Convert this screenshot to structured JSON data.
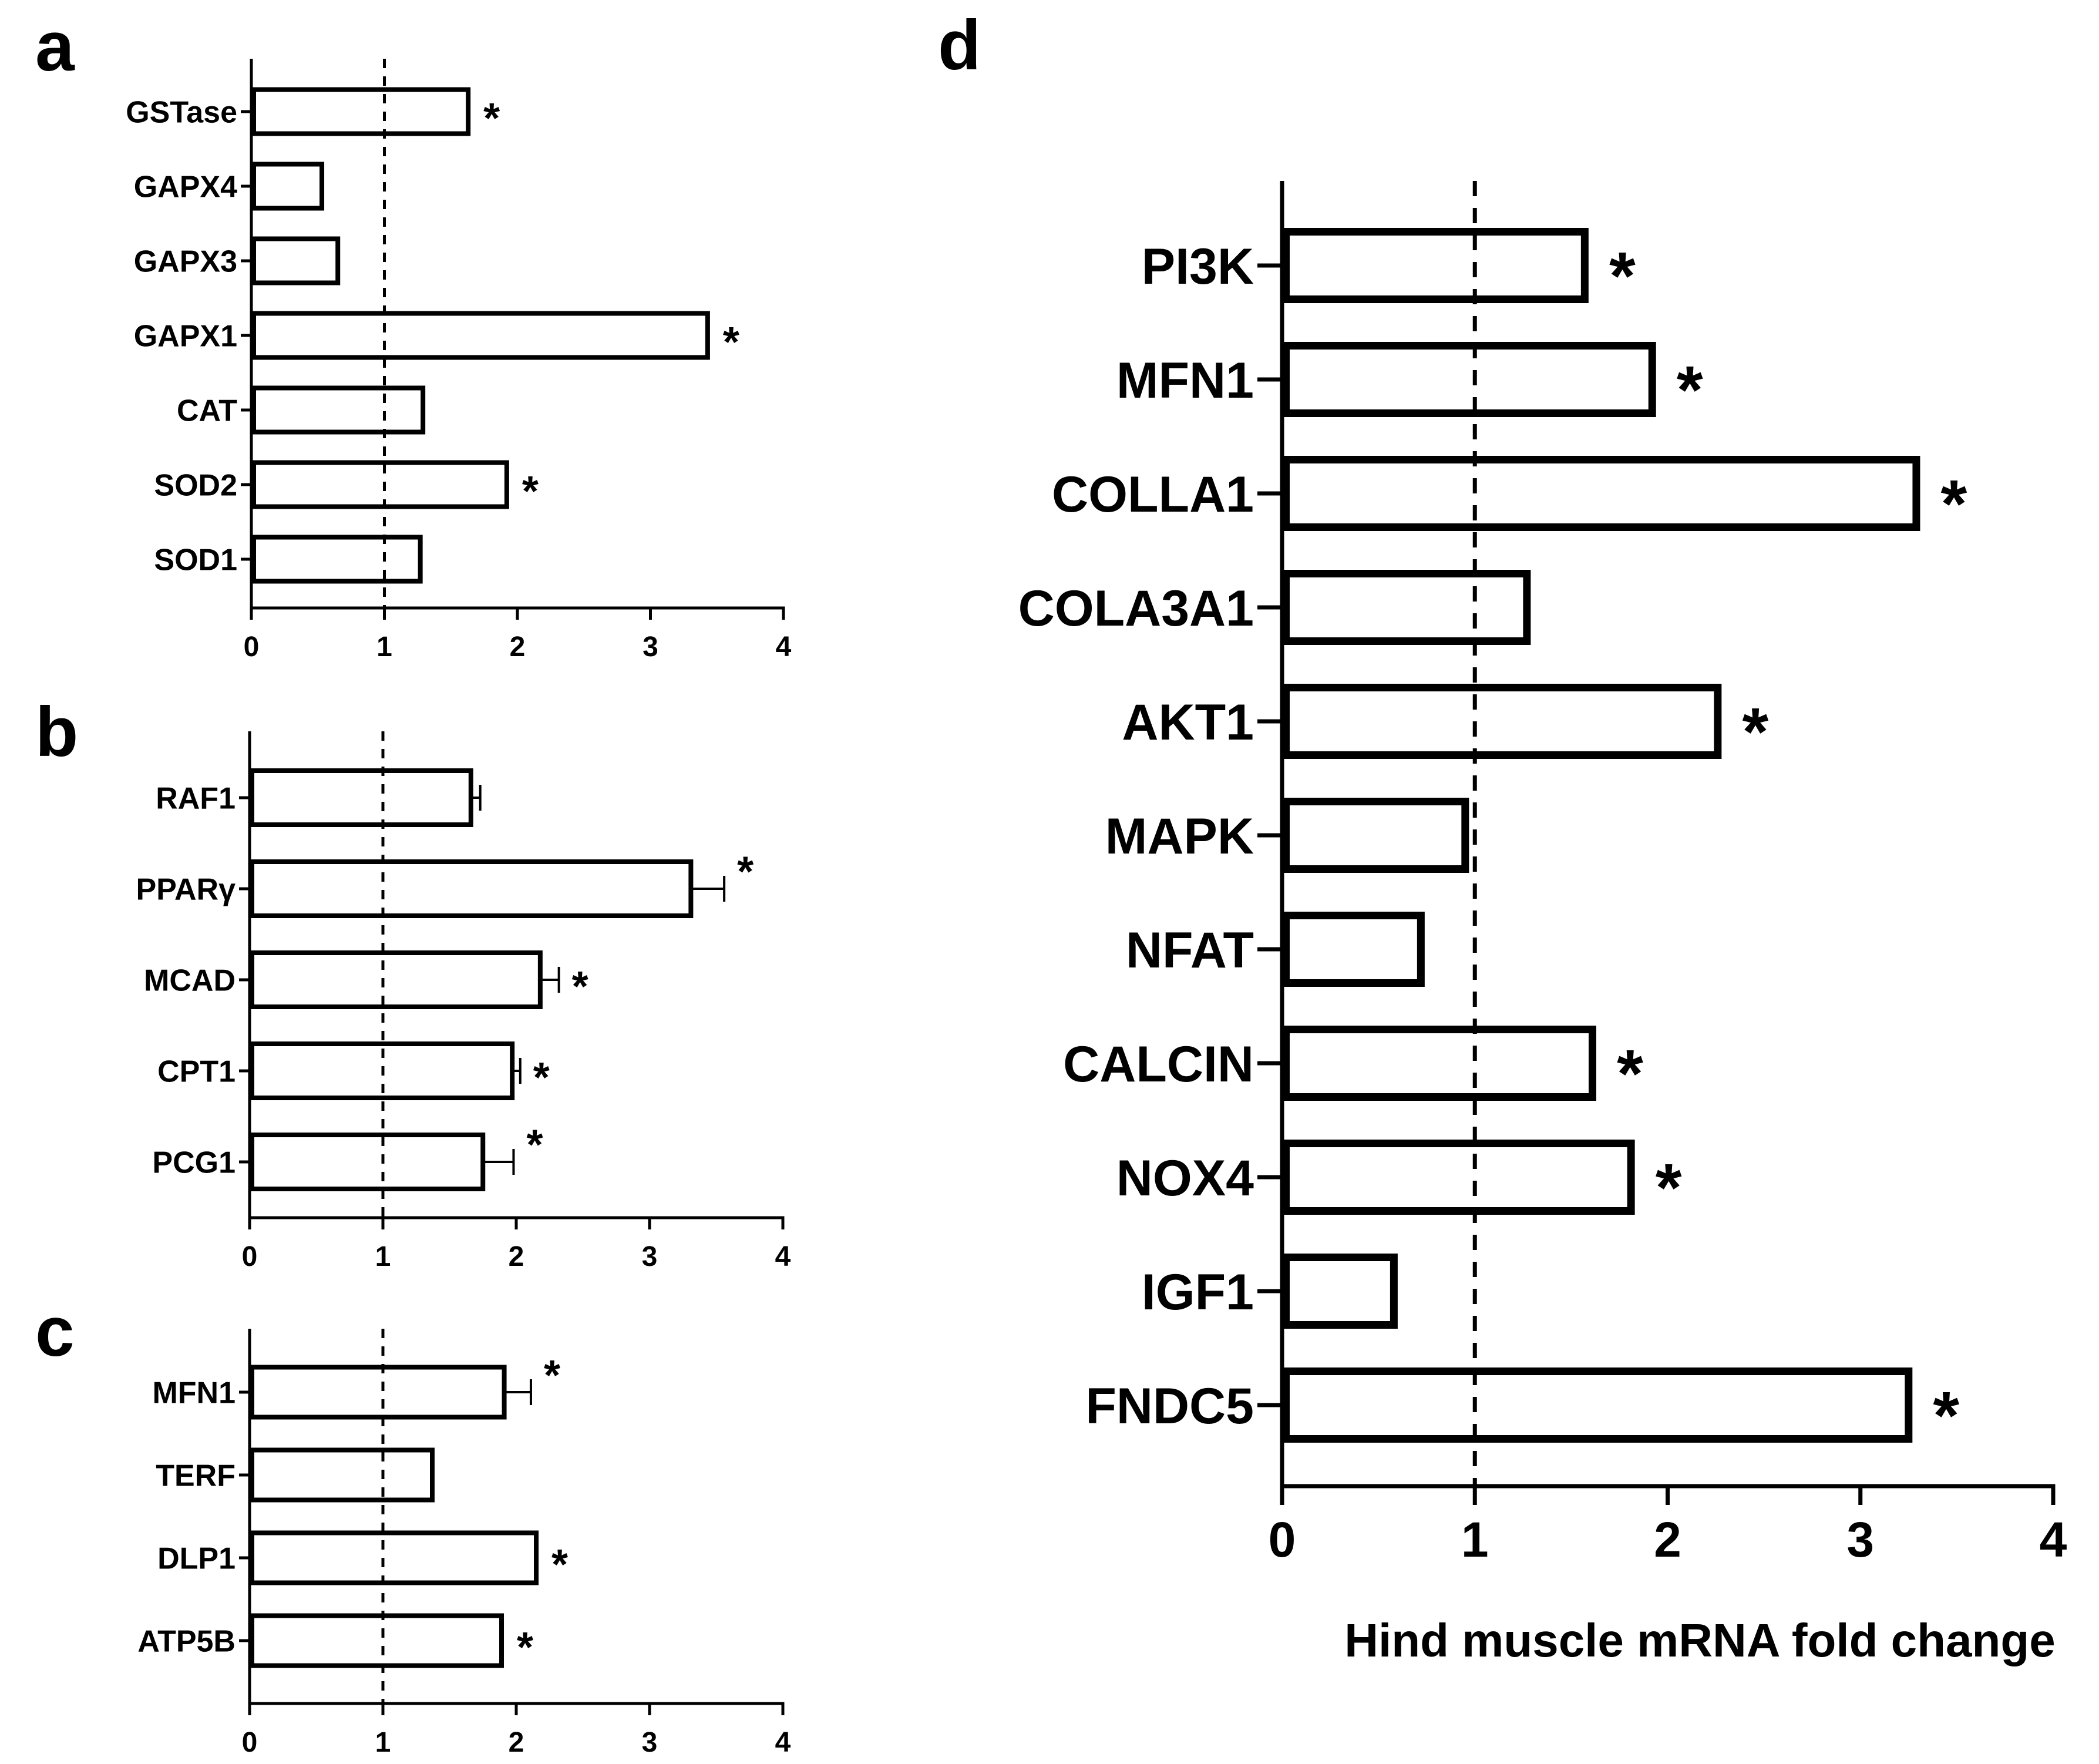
{
  "figure": {
    "x_max": 4
  },
  "chart_data": [
    {
      "panel": "a",
      "type": "bar",
      "orientation": "horizontal",
      "categories": [
        "GSTase",
        "GAPX4",
        "GAPX3",
        "GAPX1",
        "CAT",
        "SOD2",
        "SOD1"
      ],
      "values": [
        1.63,
        0.53,
        0.65,
        3.43,
        1.29,
        1.92,
        1.27
      ],
      "errors": [
        0,
        0,
        0,
        0,
        0,
        0,
        0
      ],
      "significant": [
        true,
        false,
        false,
        true,
        false,
        true,
        false
      ],
      "significance_marker": "*",
      "reference_line": 1,
      "xlim": [
        0,
        4
      ],
      "xticks": [
        0,
        1,
        2,
        3,
        4
      ],
      "xlabel": ""
    },
    {
      "panel": "b",
      "type": "bar",
      "orientation": "horizontal",
      "categories": [
        "RAF1",
        "PPARγ",
        "MCAD",
        "CPT1",
        "PCG1"
      ],
      "values": [
        1.66,
        3.31,
        2.18,
        1.97,
        1.75
      ],
      "errors": [
        0.07,
        0.25,
        0.14,
        0.06,
        0.23
      ],
      "significant": [
        false,
        true,
        true,
        true,
        true
      ],
      "significance_marker": "*",
      "reference_line": 1,
      "xlim": [
        0,
        4
      ],
      "xticks": [
        0,
        1,
        2,
        3,
        4
      ],
      "xlabel": ""
    },
    {
      "panel": "c",
      "type": "bar",
      "orientation": "horizontal",
      "categories": [
        "MFN1",
        "TERF",
        "DLP1",
        "ATP5B"
      ],
      "values": [
        1.91,
        1.37,
        2.15,
        1.89
      ],
      "errors": [
        0.2,
        0,
        0,
        0
      ],
      "significant": [
        true,
        false,
        true,
        true
      ],
      "significance_marker": "*",
      "reference_line": 1,
      "xlim": [
        0,
        4
      ],
      "xticks": [
        0,
        1,
        2,
        3,
        4
      ],
      "xlabel": ""
    },
    {
      "panel": "d",
      "type": "bar",
      "orientation": "horizontal",
      "categories": [
        "PI3K",
        "MFN1",
        "COLLA1",
        "COLA3A1",
        "AKT1",
        "MAPK",
        "NFAT",
        "CALCIN",
        "NOX4",
        "IGF1",
        "FNDC5"
      ],
      "values": [
        1.57,
        1.92,
        3.29,
        1.27,
        2.26,
        0.95,
        0.72,
        1.61,
        1.81,
        0.58,
        3.25
      ],
      "errors": [
        0,
        0,
        0,
        0,
        0,
        0,
        0,
        0,
        0,
        0,
        0
      ],
      "significant": [
        true,
        true,
        true,
        false,
        true,
        false,
        false,
        true,
        true,
        false,
        true
      ],
      "significance_marker": "*",
      "reference_line": 1,
      "xlim": [
        0,
        4
      ],
      "xticks": [
        0,
        1,
        2,
        3,
        4
      ],
      "xlabel": "Hind muscle mRNA fold change"
    }
  ]
}
